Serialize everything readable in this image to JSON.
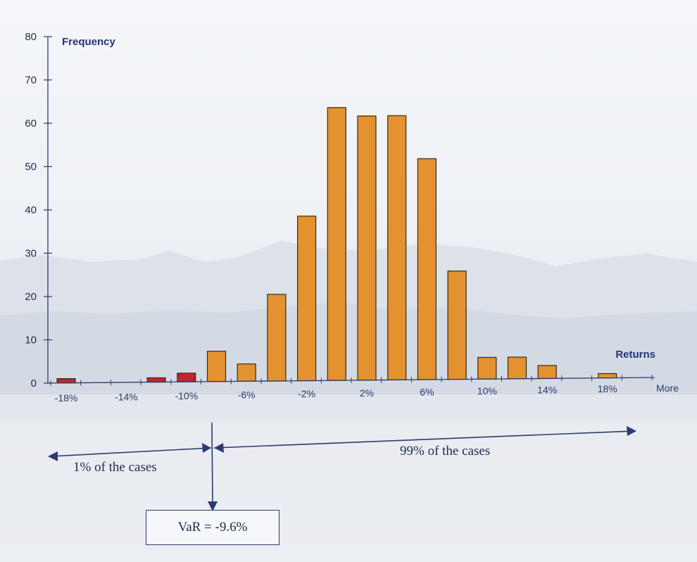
{
  "chart_data": {
    "type": "bar",
    "ylabel": "Frequency",
    "xlabel": "Returns",
    "ylim": [
      0,
      80
    ],
    "yticks": [
      0,
      10,
      20,
      30,
      40,
      50,
      60,
      70,
      80
    ],
    "x_tick_labels": [
      "-18%",
      "-14%",
      "-10%",
      "-6%",
      "-2%",
      "2%",
      "6%",
      "10%",
      "14%",
      "18%",
      "More"
    ],
    "bins": [
      "-18%",
      "-16%",
      "-14%",
      "-12%",
      "-10%",
      "-8%",
      "-6%",
      "-4%",
      "-2%",
      "0%",
      "2%",
      "4%",
      "6%",
      "8%",
      "10%",
      "12%",
      "14%",
      "16%",
      "18%",
      "More"
    ],
    "values": [
      1,
      0,
      0,
      1,
      2,
      7,
      4,
      20,
      38,
      63,
      61,
      61,
      51,
      25,
      5,
      5,
      3,
      0,
      1,
      0
    ],
    "tail_color": "#c0262c",
    "bar_color": "#e3922f",
    "tail_bins": [
      "-18%",
      "-12%",
      "-10%"
    ],
    "grid": false,
    "annotations": {
      "left_label": "1% of the cases",
      "right_label": "99% of the cases",
      "var_label": "VaR = -9.6%"
    }
  }
}
